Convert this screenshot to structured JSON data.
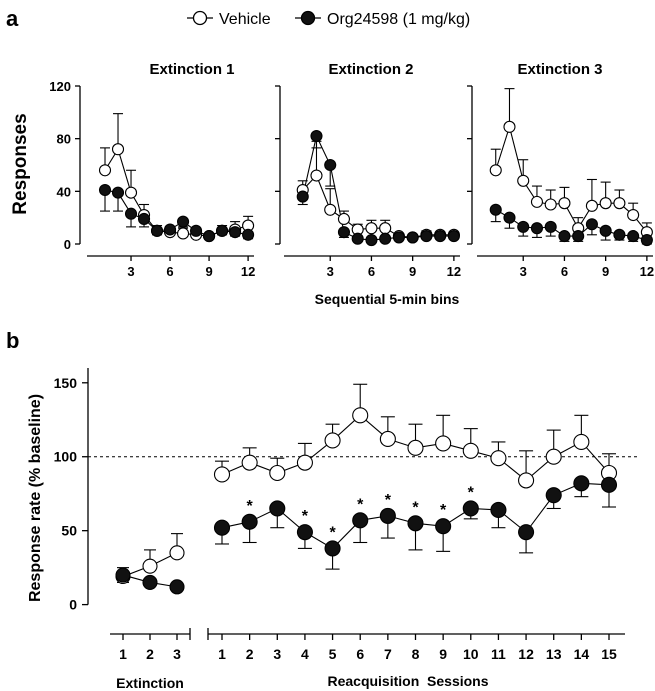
{
  "legend": {
    "vehicle_label": "Vehicle",
    "drug_label": "Org24598 (1 mg/kg)"
  },
  "colors": {
    "vehicle_fill": "#ffffff",
    "drug_fill": "#111111",
    "stroke": "#000000"
  },
  "chart_data": [
    {
      "panel": "a",
      "type": "line",
      "title": "Extinction 1",
      "xlabel": "",
      "ylabel": "Responses",
      "xlim": [
        0,
        12.3
      ],
      "ylim": [
        0,
        120
      ],
      "xticks": [
        3,
        6,
        9,
        12
      ],
      "yticks": [
        0,
        40,
        80,
        120
      ],
      "x": [
        1,
        2,
        3,
        4,
        5,
        6,
        7,
        8,
        9,
        10,
        11,
        12
      ],
      "series": [
        {
          "name": "Vehicle",
          "values": [
            56,
            72,
            39,
            22,
            10,
            9,
            8,
            7,
            6,
            10,
            11,
            14
          ],
          "err": [
            17,
            27,
            17,
            8,
            4,
            4,
            4,
            3,
            2,
            4,
            6,
            7
          ]
        },
        {
          "name": "Org24598 (1 mg/kg)",
          "values": [
            41,
            39,
            23,
            19,
            10,
            11,
            17,
            10,
            6,
            10,
            9,
            7
          ],
          "err": [
            16,
            14,
            10,
            6,
            3,
            4,
            4,
            3,
            2,
            3,
            3,
            3
          ]
        }
      ]
    },
    {
      "panel": "a",
      "type": "line",
      "title": "Extinction 2",
      "xlabel": "Sequential 5-min bins",
      "ylabel": "",
      "xlim": [
        0,
        12.3
      ],
      "ylim": [
        0,
        120
      ],
      "xticks": [
        3,
        6,
        9,
        12
      ],
      "yticks": [],
      "x": [
        1,
        2,
        3,
        4,
        5,
        6,
        7,
        8,
        9,
        10,
        11,
        12
      ],
      "series": [
        {
          "name": "Vehicle",
          "values": [
            41,
            52,
            26,
            19,
            11,
            12,
            12,
            6,
            5,
            7,
            7,
            7
          ],
          "err": [
            7,
            26,
            16,
            6,
            4,
            6,
            6,
            2,
            2,
            3,
            2,
            2
          ]
        },
        {
          "name": "Org24598 (1 mg/kg)",
          "values": [
            36,
            82,
            60,
            9,
            4,
            3,
            4,
            5,
            5,
            6,
            6,
            6
          ],
          "err": [
            6,
            9,
            16,
            4,
            2,
            2,
            2,
            2,
            2,
            2,
            2,
            2
          ]
        }
      ]
    },
    {
      "panel": "a",
      "type": "line",
      "title": "Extinction 3",
      "xlabel": "",
      "ylabel": "",
      "xlim": [
        0,
        12.3
      ],
      "ylim": [
        0,
        120
      ],
      "xticks": [
        3,
        6,
        9,
        12
      ],
      "yticks": [],
      "x": [
        1,
        2,
        3,
        4,
        5,
        6,
        7,
        8,
        9,
        10,
        11,
        12
      ],
      "series": [
        {
          "name": "Vehicle",
          "values": [
            56,
            89,
            48,
            32,
            30,
            31,
            12,
            29,
            31,
            31,
            22,
            9
          ],
          "err": [
            16,
            29,
            16,
            12,
            11,
            12,
            8,
            20,
            16,
            10,
            9,
            7
          ]
        },
        {
          "name": "Org24598 (1 mg/kg)",
          "values": [
            26,
            20,
            13,
            12,
            13,
            6,
            6,
            15,
            10,
            7,
            6,
            3
          ],
          "err": [
            9,
            8,
            7,
            7,
            7,
            4,
            4,
            8,
            7,
            4,
            4,
            3
          ]
        }
      ]
    },
    {
      "panel": "b",
      "type": "line",
      "title": "",
      "ylabel": "Response rate (% baseline)",
      "ylim": [
        -5,
        160
      ],
      "yticks": [
        0,
        50,
        100,
        150
      ],
      "reference_line": 100,
      "extinction": {
        "xlabel": "Extinction",
        "x": [
          1,
          2,
          3
        ],
        "series": [
          {
            "name": "Vehicle",
            "values": [
              19,
              26,
              35
            ],
            "err": [
              6,
              11,
              13
            ]
          },
          {
            "name": "Org24598 (1 mg/kg)",
            "values": [
              20,
              15,
              12
            ],
            "err": [
              5,
              2,
              1
            ]
          }
        ]
      },
      "reacquisition": {
        "xlabel": "Reacquisition  Sessions",
        "x": [
          1,
          2,
          3,
          4,
          5,
          6,
          7,
          8,
          9,
          10,
          11,
          12,
          13,
          14,
          15
        ],
        "series": [
          {
            "name": "Vehicle",
            "values": [
              88,
              96,
              89,
              96,
              111,
              128,
              112,
              106,
              109,
              104,
              99,
              84,
              100,
              110,
              89
            ],
            "err": [
              9,
              10,
              10,
              13,
              11,
              21,
              15,
              16,
              19,
              15,
              11,
              20,
              18,
              18,
              13
            ]
          },
          {
            "name": "Org24598 (1 mg/kg)",
            "values": [
              52,
              56,
              65,
              49,
              38,
              57,
              60,
              55,
              53,
              65,
              64,
              49,
              74,
              82,
              81
            ],
            "err": [
              11,
              14,
              13,
              11,
              14,
              15,
              15,
              18,
              17,
              7,
              12,
              14,
              9,
              9,
              15
            ]
          }
        ],
        "significant_marks": [
          {
            "x": 2,
            "label": "*"
          },
          {
            "x": 4,
            "label": "*"
          },
          {
            "x": 5,
            "label": "*"
          },
          {
            "x": 6,
            "label": "*"
          },
          {
            "x": 7,
            "label": "*"
          },
          {
            "x": 8,
            "label": "*"
          },
          {
            "x": 9,
            "label": "*"
          },
          {
            "x": 10,
            "label": "*"
          }
        ]
      }
    }
  ],
  "panel_labels": {
    "a": "a",
    "b": "b"
  }
}
